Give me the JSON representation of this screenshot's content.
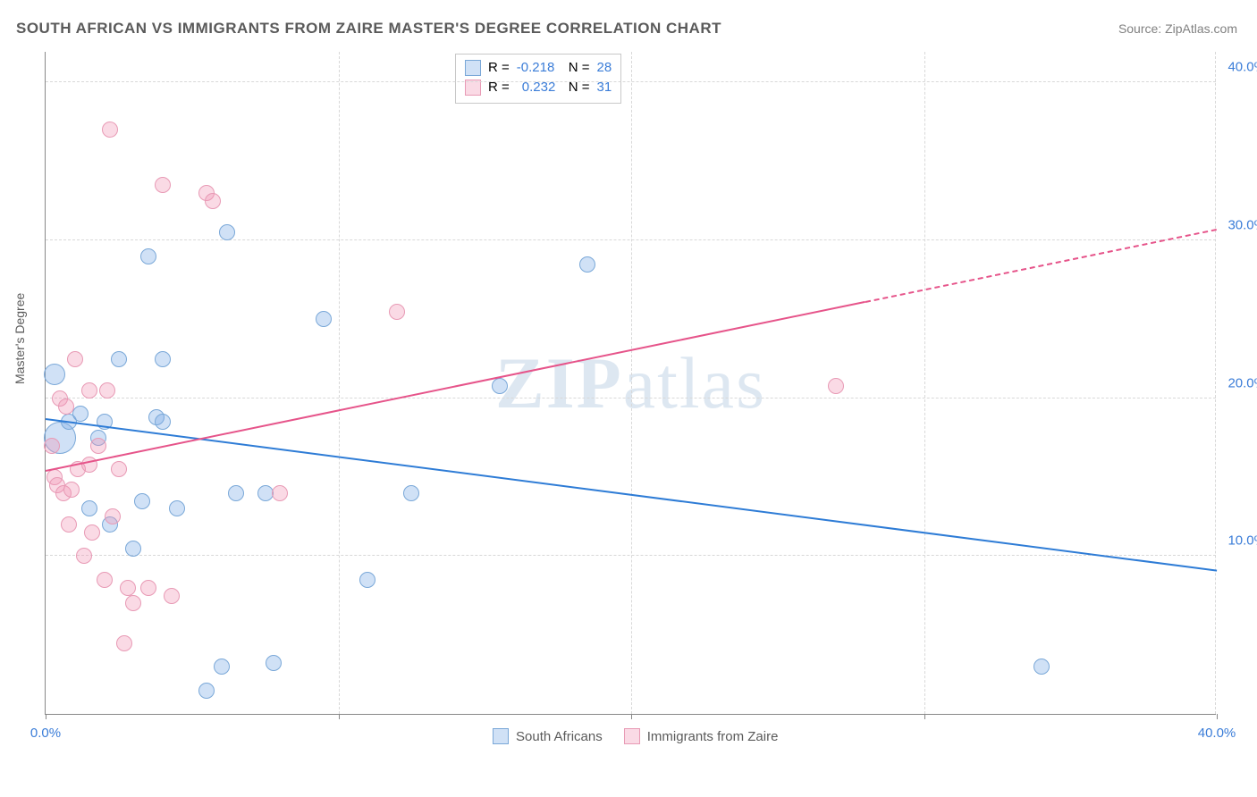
{
  "title": "SOUTH AFRICAN VS IMMIGRANTS FROM ZAIRE MASTER'S DEGREE CORRELATION CHART",
  "source": "Source: ZipAtlas.com",
  "ylabel": "Master's Degree",
  "watermark_bold": "ZIP",
  "watermark_rest": "atlas",
  "chart": {
    "type": "scatter",
    "xlim": [
      0,
      40
    ],
    "ylim": [
      0,
      42
    ],
    "xticks": [
      0,
      10,
      20,
      30,
      40
    ],
    "xtick_labels": [
      "0.0%",
      "",
      "",
      "",
      "40.0%"
    ],
    "yticks": [
      10,
      20,
      30,
      40
    ],
    "ytick_labels": [
      "10.0%",
      "20.0%",
      "30.0%",
      "40.0%"
    ],
    "grid_h": [
      10,
      20,
      30,
      40
    ],
    "grid_v": [
      10,
      20,
      30
    ],
    "background_color": "#ffffff",
    "grid_color": "#d8d8d8",
    "ytick_color": "#3b7dd8",
    "xtick_color": "#3b7dd8",
    "series": [
      {
        "name": "south_africans",
        "label": "South Africans",
        "fill": "rgba(120,170,230,0.35)",
        "stroke": "#7aa8d8",
        "R": "-0.218",
        "N": "28",
        "trend": {
          "x1": 0,
          "y1": 18.8,
          "x2": 40,
          "y2": 9.2,
          "color": "#2e7cd6",
          "dashed_from_x": null
        },
        "points": [
          {
            "x": 0.3,
            "y": 21.5,
            "r": 12
          },
          {
            "x": 0.5,
            "y": 17.5,
            "r": 18
          },
          {
            "x": 0.8,
            "y": 18.5,
            "r": 9
          },
          {
            "x": 1.2,
            "y": 19.0,
            "r": 9
          },
          {
            "x": 1.5,
            "y": 13.0,
            "r": 9
          },
          {
            "x": 1.8,
            "y": 17.5,
            "r": 9
          },
          {
            "x": 2.0,
            "y": 18.5,
            "r": 9
          },
          {
            "x": 2.2,
            "y": 12.0,
            "r": 9
          },
          {
            "x": 2.5,
            "y": 22.5,
            "r": 9
          },
          {
            "x": 3.0,
            "y": 10.5,
            "r": 9
          },
          {
            "x": 3.3,
            "y": 13.5,
            "r": 9
          },
          {
            "x": 3.5,
            "y": 29.0,
            "r": 9
          },
          {
            "x": 3.8,
            "y": 18.8,
            "r": 9
          },
          {
            "x": 4.0,
            "y": 22.5,
            "r": 9
          },
          {
            "x": 4.0,
            "y": 18.5,
            "r": 9
          },
          {
            "x": 4.5,
            "y": 13.0,
            "r": 9
          },
          {
            "x": 5.5,
            "y": 1.5,
            "r": 9
          },
          {
            "x": 6.0,
            "y": 3.0,
            "r": 9
          },
          {
            "x": 6.2,
            "y": 30.5,
            "r": 9
          },
          {
            "x": 6.5,
            "y": 14.0,
            "r": 9
          },
          {
            "x": 7.5,
            "y": 14.0,
            "r": 9
          },
          {
            "x": 7.8,
            "y": 3.2,
            "r": 9
          },
          {
            "x": 9.5,
            "y": 25.0,
            "r": 9
          },
          {
            "x": 11.0,
            "y": 8.5,
            "r": 9
          },
          {
            "x": 12.5,
            "y": 14.0,
            "r": 9
          },
          {
            "x": 15.5,
            "y": 20.8,
            "r": 9
          },
          {
            "x": 18.5,
            "y": 28.5,
            "r": 9
          },
          {
            "x": 34.0,
            "y": 3.0,
            "r": 9
          }
        ]
      },
      {
        "name": "immigrants_zaire",
        "label": "Immigrants from Zaire",
        "fill": "rgba(240,150,180,0.35)",
        "stroke": "#e89ab5",
        "R": "0.232",
        "N": "31",
        "trend": {
          "x1": 0,
          "y1": 15.5,
          "x2": 40,
          "y2": 30.8,
          "color": "#e6548a",
          "dashed_from_x": 28
        },
        "points": [
          {
            "x": 0.2,
            "y": 17.0,
            "r": 9
          },
          {
            "x": 0.3,
            "y": 15.0,
            "r": 9
          },
          {
            "x": 0.4,
            "y": 14.5,
            "r": 9
          },
          {
            "x": 0.5,
            "y": 20.0,
            "r": 9
          },
          {
            "x": 0.6,
            "y": 14.0,
            "r": 9
          },
          {
            "x": 0.7,
            "y": 19.5,
            "r": 9
          },
          {
            "x": 0.8,
            "y": 12.0,
            "r": 9
          },
          {
            "x": 0.9,
            "y": 14.2,
            "r": 9
          },
          {
            "x": 1.0,
            "y": 22.5,
            "r": 9
          },
          {
            "x": 1.1,
            "y": 15.5,
            "r": 9
          },
          {
            "x": 1.3,
            "y": 10.0,
            "r": 9
          },
          {
            "x": 1.5,
            "y": 15.8,
            "r": 9
          },
          {
            "x": 1.5,
            "y": 20.5,
            "r": 9
          },
          {
            "x": 1.6,
            "y": 11.5,
            "r": 9
          },
          {
            "x": 1.8,
            "y": 17.0,
            "r": 9
          },
          {
            "x": 2.0,
            "y": 8.5,
            "r": 9
          },
          {
            "x": 2.1,
            "y": 20.5,
            "r": 9
          },
          {
            "x": 2.2,
            "y": 37.0,
            "r": 9
          },
          {
            "x": 2.3,
            "y": 12.5,
            "r": 9
          },
          {
            "x": 2.5,
            "y": 15.5,
            "r": 9
          },
          {
            "x": 2.7,
            "y": 4.5,
            "r": 9
          },
          {
            "x": 2.8,
            "y": 8.0,
            "r": 9
          },
          {
            "x": 3.0,
            "y": 7.0,
            "r": 9
          },
          {
            "x": 3.5,
            "y": 8.0,
            "r": 9
          },
          {
            "x": 4.0,
            "y": 33.5,
            "r": 9
          },
          {
            "x": 4.3,
            "y": 7.5,
            "r": 9
          },
          {
            "x": 5.5,
            "y": 33.0,
            "r": 9
          },
          {
            "x": 5.7,
            "y": 32.5,
            "r": 9
          },
          {
            "x": 8.0,
            "y": 14.0,
            "r": 9
          },
          {
            "x": 12.0,
            "y": 25.5,
            "r": 9
          },
          {
            "x": 27.0,
            "y": 20.8,
            "r": 9
          }
        ]
      }
    ]
  },
  "legend_top": {
    "r_label": "R =",
    "n_label": "N ="
  }
}
